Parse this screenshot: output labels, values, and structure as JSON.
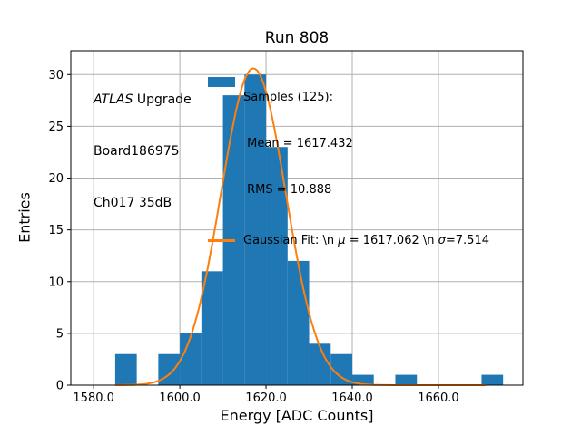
{
  "chart_data": {
    "type": "bar",
    "subtype": "histogram",
    "title": "Run 808",
    "xlabel": "Energy [ADC Counts]",
    "ylabel": "Entries",
    "bin_start": 1580,
    "bin_width": 5,
    "bin_counts": [
      0,
      3,
      0,
      3,
      5,
      11,
      28,
      30,
      23,
      12,
      4,
      3,
      1,
      0,
      1,
      0,
      0,
      0,
      1
    ],
    "stats": {
      "samples": 125,
      "mean": 1617.432,
      "rms": 10.888
    },
    "gaussian_fit": {
      "amplitude": 30.6,
      "mu": 1617.062,
      "sigma": 7.514,
      "x_range": [
        1585,
        1671
      ]
    },
    "xlim": [
      1574.7,
      1679.6
    ],
    "ylim": [
      0,
      32.3
    ],
    "xticks": {
      "values": [
        1580,
        1600,
        1620,
        1640,
        1660
      ],
      "labels": [
        "1580.0",
        "1600.0",
        "1620.0",
        "1640.0",
        "1660.0"
      ]
    },
    "yticks": {
      "values": [
        0,
        5,
        10,
        15,
        20,
        25,
        30
      ],
      "labels": [
        "0",
        "5",
        "10",
        "15",
        "20",
        "25",
        "30"
      ]
    },
    "grid": true,
    "legend_position": "upper center",
    "colors": {
      "bar": "#1f77b4",
      "fit_line": "#ff7f0e",
      "grid": "#b0b0b0",
      "text": "#000000"
    }
  },
  "annotation": {
    "atlas": "ATLAS",
    "upgrade": " Upgrade",
    "board": "Board186975",
    "channel": "Ch017 35dB"
  },
  "legend": {
    "samples": {
      "color": "#1f77b4",
      "lines": [
        "Samples (125):",
        " Mean = 1617.432",
        " RMS = 10.888"
      ]
    },
    "fit": {
      "color": "#ff7f0e",
      "prefix": "Gaussian Fit: \\n ",
      "mu": "μ",
      "mid": " = 1617.062 \\n ",
      "sigma": "σ",
      "suffix": "=7.514"
    }
  }
}
